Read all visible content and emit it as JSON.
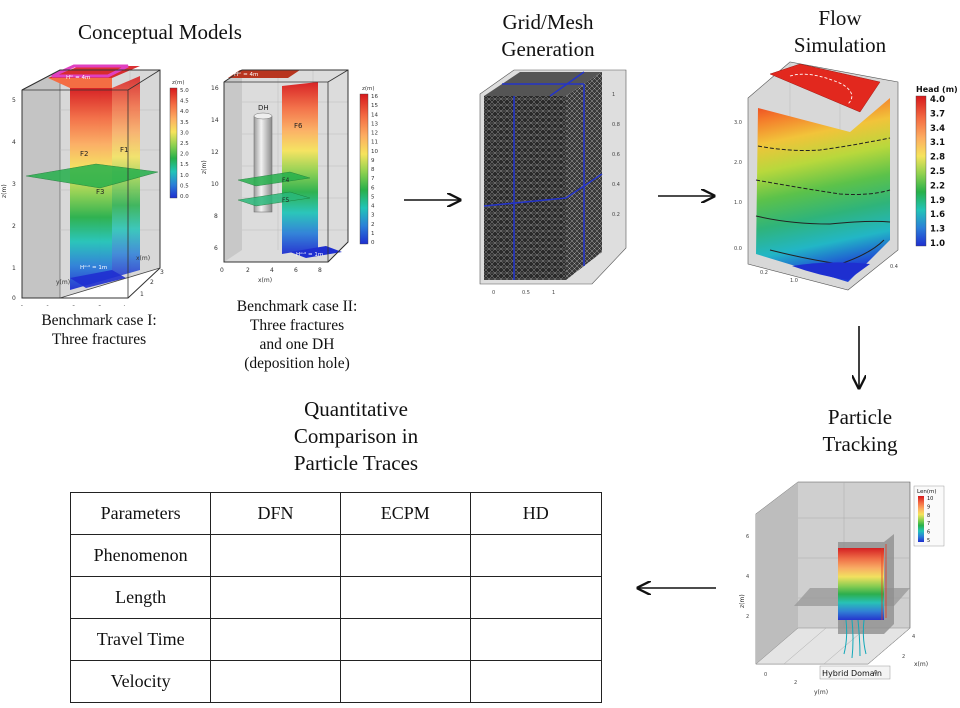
{
  "sections": {
    "conceptual": {
      "title": "Conceptual Models"
    },
    "mesh": {
      "title_line1": "Grid/Mesh",
      "title_line2": "Generation"
    },
    "flow": {
      "title_line1": "Flow",
      "title_line2": "Simulation"
    },
    "particle": {
      "title_line1": "Particle",
      "title_line2": "Tracking"
    },
    "comparison": {
      "title_line1": "Quantitative",
      "title_line2": "Comparison in",
      "title_line3": "Particle Traces"
    }
  },
  "case1": {
    "caption_line1": "Benchmark case I:",
    "caption_line2": "Three fractures",
    "h_top": "Hᴵⁿ = 4m",
    "h_bottom": "Hᵒᵘᵗ = 1m",
    "labels": {
      "f1": "F1",
      "f2": "F2",
      "f3": "F3"
    },
    "colorbar_title": "z(m)",
    "colorbar_ticks": [
      "5.0",
      "4.5",
      "4.0",
      "3.5",
      "3.0",
      "2.5",
      "2.0",
      "1.5",
      "1.0",
      "0.5",
      "0.0"
    ],
    "axis_y": "z(m)",
    "axis_x1": "y(m)",
    "axis_x2": "x(m)"
  },
  "case2": {
    "caption_line1": "Benchmark case II:",
    "caption_line2": "Three fractures",
    "caption_line3": "and one DH",
    "caption_line4": "(deposition hole)",
    "h_top": "Hᴵⁿ = 4m",
    "h_bottom": "Hᵒᵘᵗ = 1m",
    "labels": {
      "dh": "DH",
      "f4": "F4",
      "f5": "F5",
      "f6": "F6"
    },
    "colorbar_title": "z(m)",
    "colorbar_ticks": [
      "16",
      "15",
      "14",
      "13",
      "12",
      "11",
      "10",
      "9",
      "8",
      "7",
      "6",
      "5",
      "4",
      "3",
      "2",
      "1",
      "0"
    ],
    "axis_y": "z(m)",
    "axis_x": "x(m)"
  },
  "flow": {
    "legend_title": "Head (m)",
    "legend_ticks": [
      "4.0",
      "3.7",
      "3.4",
      "3.1",
      "2.8",
      "2.5",
      "2.2",
      "1.9",
      "1.6",
      "1.3",
      "1.0"
    ]
  },
  "particle": {
    "legend_title": "Len(m)",
    "legend_ticks": [
      "10",
      "9",
      "8",
      "7",
      "6",
      "5"
    ],
    "domain_label": "Hybrid Domain",
    "axis_y": "z(m)",
    "axis_x": "y(m)",
    "axis_x2": "x(m)"
  },
  "table": {
    "headers": [
      "Parameters",
      "DFN",
      "ECPM",
      "HD"
    ],
    "rows": [
      "Phenomenon",
      "Length",
      "Travel Time",
      "Velocity"
    ]
  },
  "colors": {
    "rainbow": [
      "#d7191c",
      "#f46d43",
      "#fdae61",
      "#fee08b",
      "#d9ef8b",
      "#66bd63",
      "#1a9850",
      "#2cc7b0",
      "#2b83ba",
      "#1f3fd0"
    ],
    "inlet": "#e040c0",
    "mesh_line": "#2434c8"
  }
}
